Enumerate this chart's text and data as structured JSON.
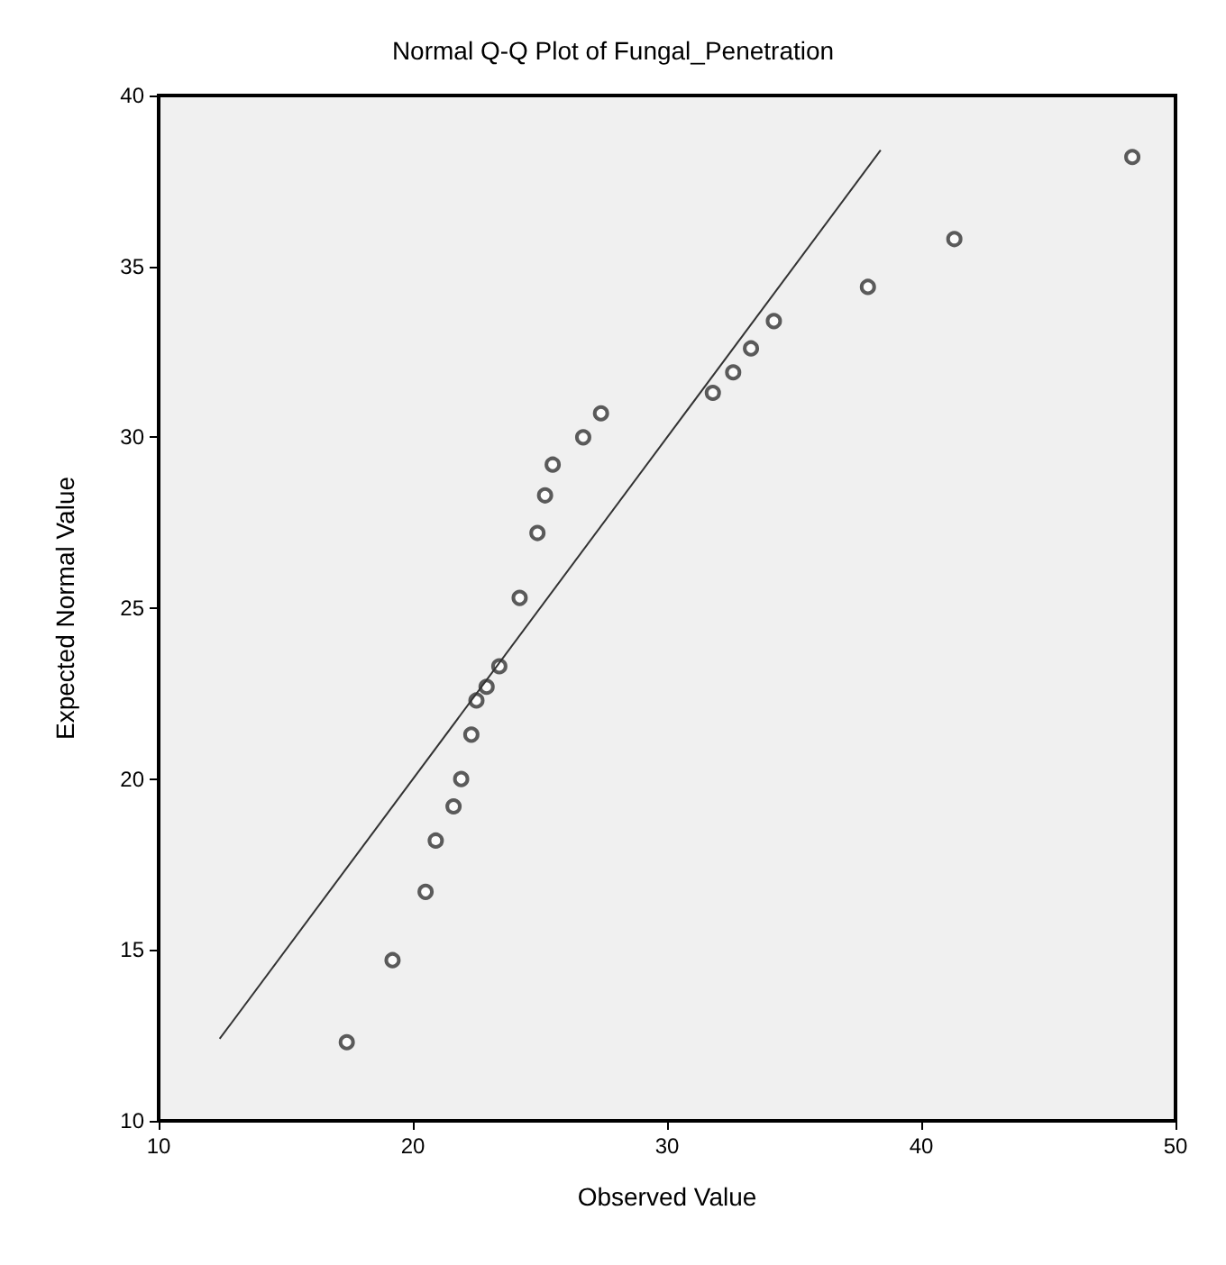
{
  "chart_data": {
    "type": "scatter",
    "title": "Normal Q-Q Plot of Fungal_Penetration",
    "xlabel": "Observed Value",
    "ylabel": "Expected Normal Value",
    "xlim": [
      10,
      50
    ],
    "xticks": [
      10,
      20,
      30,
      40,
      50
    ],
    "ylim": [
      10,
      40
    ],
    "yticks": [
      10,
      15,
      20,
      25,
      30,
      35,
      40
    ],
    "grid": false,
    "series": [
      {
        "color": "#333333",
        "marker": "circle",
        "x": [
          17.4,
          19.2,
          20.5,
          20.9,
          21.6,
          21.9,
          22.3,
          22.5,
          22.9,
          23.4,
          24.2,
          24.9,
          25.2,
          25.5,
          26.7,
          27.4,
          31.8,
          32.6,
          33.3,
          34.2,
          37.9,
          41.3,
          48.3
        ],
        "values": [
          12.3,
          14.7,
          16.7,
          18.2,
          19.2,
          20.0,
          21.3,
          22.3,
          22.7,
          23.3,
          25.3,
          27.2,
          28.3,
          29.2,
          30.0,
          30.7,
          31.3,
          31.9,
          32.6,
          33.4,
          34.4,
          35.8,
          38.2
        ]
      },
      {
        "type": "line",
        "marker": "none",
        "color": "#333333",
        "x": [
          12.4,
          38.4
        ],
        "values": [
          12.4,
          38.4
        ]
      }
    ]
  }
}
